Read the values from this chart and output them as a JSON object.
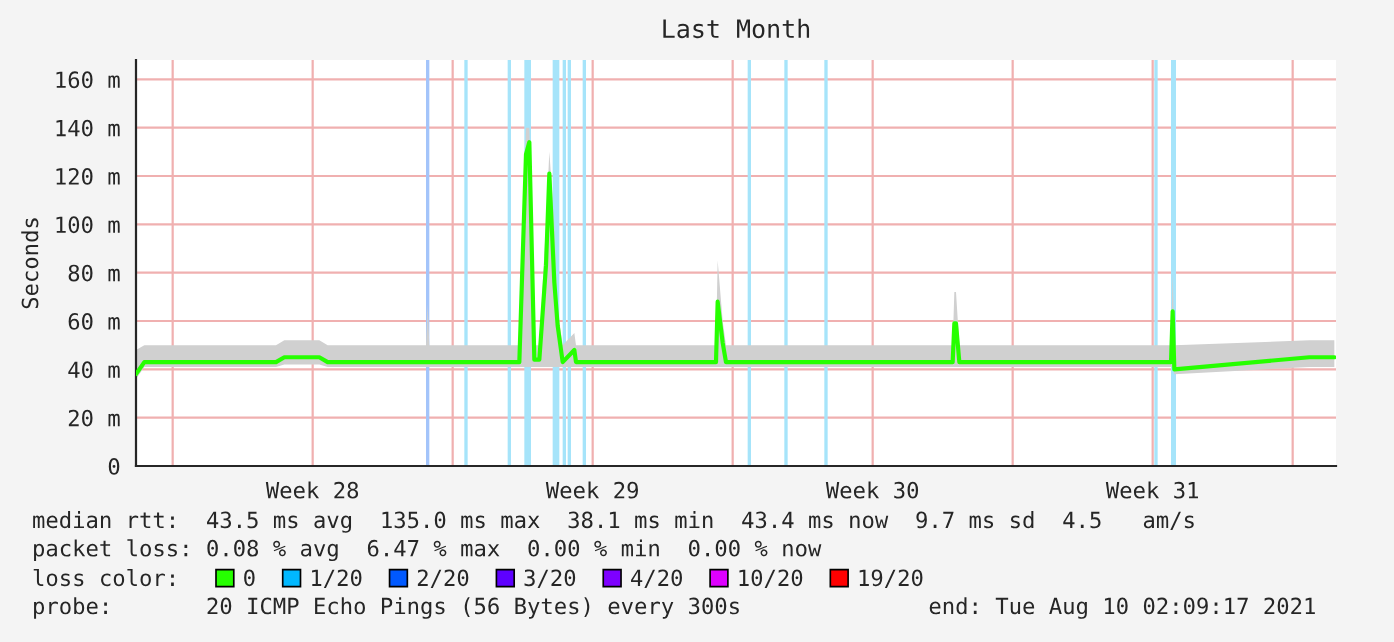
{
  "chart_data": {
    "type": "line",
    "title": "Last Month",
    "ylabel": "Seconds",
    "xlim": [
      "2021-07-11T02:00",
      "2021-08-10T02:00"
    ],
    "ylim": [
      0,
      168
    ],
    "xticks": [
      {
        "value": "2021-07-12",
        "label": null
      },
      {
        "value": "2021-07-15T12:00",
        "label": "Week 28"
      },
      {
        "value": "2021-07-19",
        "label": null
      },
      {
        "value": "2021-07-22T12:00",
        "label": "Week 29"
      },
      {
        "value": "2021-07-26",
        "label": null
      },
      {
        "value": "2021-07-29T12:00",
        "label": "Week 30"
      },
      {
        "value": "2021-08-02",
        "label": null
      },
      {
        "value": "2021-08-05T12:00",
        "label": "Week 31"
      },
      {
        "value": "2021-08-09",
        "label": null
      }
    ],
    "yticks": [
      0,
      {
        "value": 20,
        "label": "20 m"
      },
      {
        "value": 40,
        "label": "40 m"
      },
      {
        "value": 60,
        "label": "60 m"
      },
      {
        "value": 80,
        "label": "80 m"
      },
      {
        "value": 100,
        "label": "100 m"
      },
      {
        "value": 120,
        "label": "120 m"
      },
      {
        "value": 140,
        "label": "140 m"
      },
      {
        "value": 160,
        "label": "160 m"
      }
    ],
    "grid": true,
    "legend": "bottom",
    "series": [
      {
        "name": "0",
        "color": "#26ff00",
        "x": [
          "2021-07-11T02:00",
          "2021-07-11T07:00",
          "2021-07-14T14:00",
          "2021-07-14T19:00",
          "2021-07-15T16:00",
          "2021-07-15T21:00",
          "2021-07-18T08:00",
          "2021-07-18T09:00",
          "2021-07-18T10:00",
          "2021-07-20T16:00",
          "2021-07-20T20:00",
          "2021-07-20T22:00",
          "2021-07-21T01:00",
          "2021-07-21T04:00",
          "2021-07-21T08:00",
          "2021-07-21T10:00",
          "2021-07-21T13:00",
          "2021-07-21T15:00",
          "2021-07-21T18:00",
          "2021-07-22T01:00",
          "2021-07-22T02:00",
          "2021-07-25T14:00",
          "2021-07-25T15:00",
          "2021-07-25T18:00",
          "2021-07-25T20:00",
          "2021-07-31T12:00",
          "2021-07-31T13:00",
          "2021-07-31T14:00",
          "2021-07-31T16:00",
          "2021-08-05T23:00",
          "2021-08-06T00:00",
          "2021-08-06T01:00",
          "2021-08-09T10:00",
          "2021-08-10T01:00"
        ],
        "values": [
          38,
          43,
          43,
          45,
          45,
          43,
          43,
          43,
          43,
          43,
          129,
          134,
          44,
          44,
          83,
          121,
          76,
          58,
          43,
          48,
          43,
          43,
          68,
          51,
          43,
          43,
          59,
          59,
          43,
          43,
          64,
          40,
          45,
          45
        ],
        "lower": [
          36,
          41,
          41,
          42,
          42,
          41,
          41,
          41,
          41,
          41,
          41,
          41,
          41,
          41,
          41,
          41,
          41,
          41,
          41,
          41,
          41,
          41,
          41,
          41,
          41,
          41,
          41,
          41,
          41,
          41,
          41,
          38,
          41,
          41
        ],
        "upper": [
          48,
          50,
          50,
          52,
          52,
          50,
          50,
          67,
          50,
          50,
          140,
          140,
          50,
          50,
          100,
          130,
          100,
          65,
          50,
          55,
          50,
          50,
          85,
          60,
          50,
          50,
          72,
          72,
          50,
          50,
          80,
          50,
          52,
          52
        ]
      },
      {
        "name": "1/20",
        "color": "#00b8ff",
        "values": [
          null
        ]
      },
      {
        "name": "2/20",
        "color": "#0059ff",
        "values": [
          null
        ]
      },
      {
        "name": "3/20",
        "color": "#5e00ff",
        "values": [
          null
        ]
      },
      {
        "name": "4/20",
        "color": "#7e00ff",
        "values": [
          null
        ]
      },
      {
        "name": "10/20",
        "color": "#dd00ff",
        "values": [
          null
        ]
      },
      {
        "name": "19/20",
        "color": "#ff0000",
        "values": [
          null
        ]
      }
    ],
    "bands": [
      {
        "axis": "x",
        "from": "2021-07-18T08:00",
        "to": "2021-07-18T10:00",
        "color": "#a3c4fa"
      },
      {
        "axis": "x",
        "from": "2021-07-19T07:00",
        "to": "2021-07-19T09:00",
        "color": "#a6e4fa"
      },
      {
        "axis": "x",
        "from": "2021-07-20T09:00",
        "to": "2021-07-20T11:00",
        "color": "#a6e4fa"
      },
      {
        "axis": "x",
        "from": "2021-07-20T19:00",
        "to": "2021-07-20T23:00",
        "color": "#a6e4fa"
      },
      {
        "axis": "x",
        "from": "2021-07-21T12:00",
        "to": "2021-07-21T16:00",
        "color": "#a6e4fa"
      },
      {
        "axis": "x",
        "from": "2021-07-21T18:00",
        "to": "2021-07-21T20:00",
        "color": "#a6e4fa"
      },
      {
        "axis": "x",
        "from": "2021-07-21T21:00",
        "to": "2021-07-21T23:00",
        "color": "#a6e4fa"
      },
      {
        "axis": "x",
        "from": "2021-07-22T06:00",
        "to": "2021-07-22T08:00",
        "color": "#a6e4fa"
      },
      {
        "axis": "x",
        "from": "2021-07-26T09:00",
        "to": "2021-07-26T11:00",
        "color": "#a6e4fa"
      },
      {
        "axis": "x",
        "from": "2021-07-27T07:00",
        "to": "2021-07-27T09:00",
        "color": "#a6e4fa"
      },
      {
        "axis": "x",
        "from": "2021-07-28T07:00",
        "to": "2021-07-28T09:00",
        "color": "#a6e4fa"
      },
      {
        "axis": "x",
        "from": "2021-08-05T13:00",
        "to": "2021-08-05T15:00",
        "color": "#a6e4fa"
      },
      {
        "axis": "x",
        "from": "2021-08-05T23:00",
        "to": "2021-08-06T02:00",
        "color": "#a6e4fa"
      }
    ],
    "annotations": [
      "median rtt:  43.5 ms avg  135.0 ms max  38.1 ms min  43.4 ms now  9.7 ms sd  4.5   am/s",
      "packet loss: 0.08 % avg  6.47 % max  0.00 % min  0.00 % now",
      "loss color:",
      "probe:       20 ICMP Echo Pings (56 Bytes) every 300s              end: Tue Aug 10 02:09:17 2021"
    ]
  }
}
